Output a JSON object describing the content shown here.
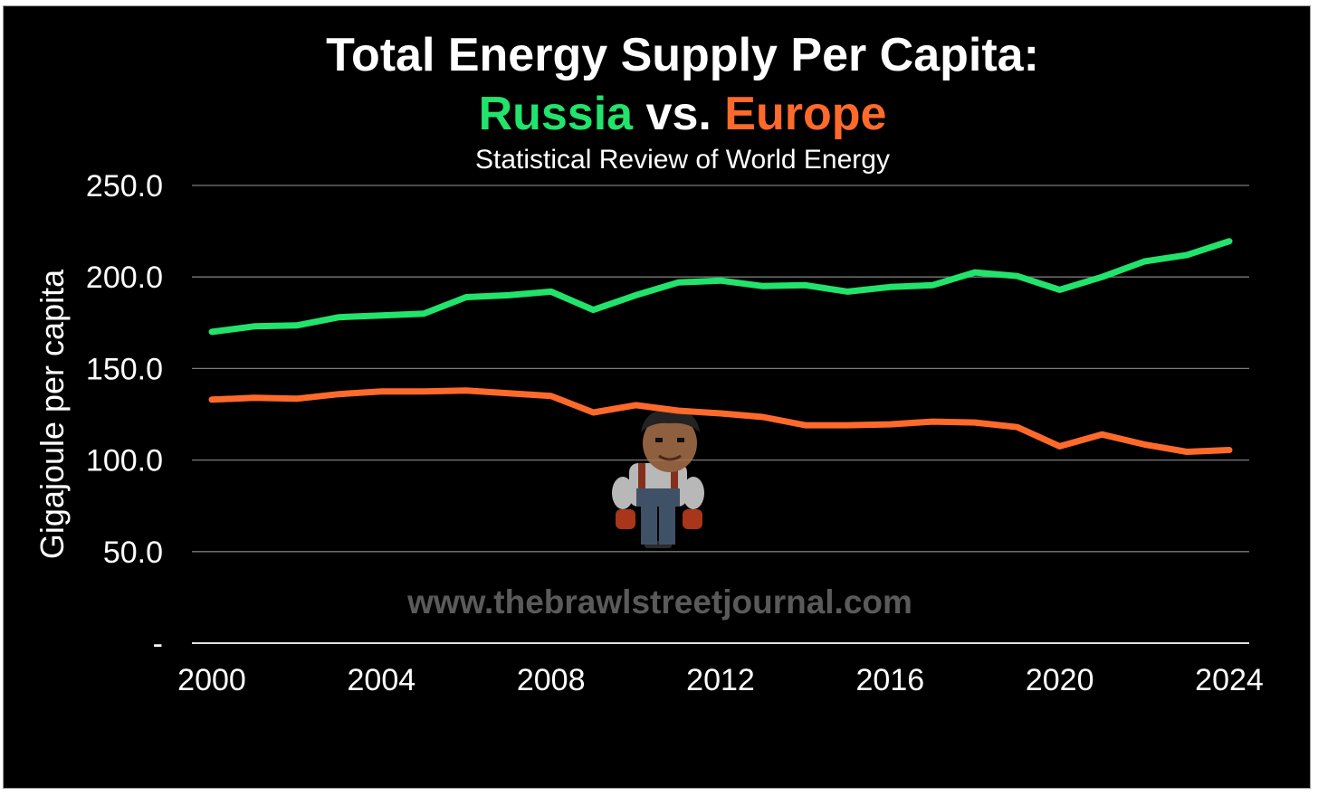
{
  "chart_data": {
    "type": "line",
    "title": "Total Energy Supply Per Capita:",
    "title_line2": {
      "a": "Russia",
      "vs": " vs. ",
      "b": "Europe"
    },
    "subtitle": "Statistical Review of World Energy",
    "ylabel": "Gigajoule per capita",
    "xlabel": "",
    "ylim": [
      0,
      250
    ],
    "y_ticks": [
      {
        "value": 0,
        "label": "-"
      },
      {
        "value": 50,
        "label": "50.0"
      },
      {
        "value": 100,
        "label": "100.0"
      },
      {
        "value": 150,
        "label": "150.0"
      },
      {
        "value": 200,
        "label": "200.0"
      },
      {
        "value": 250,
        "label": "250.0"
      }
    ],
    "x_ticks": [
      2000,
      2004,
      2008,
      2012,
      2016,
      2020,
      2024
    ],
    "grid": true,
    "x": [
      2000,
      2001,
      2002,
      2003,
      2004,
      2005,
      2006,
      2007,
      2008,
      2009,
      2010,
      2011,
      2012,
      2013,
      2014,
      2015,
      2016,
      2017,
      2018,
      2019,
      2020,
      2021,
      2022,
      2023,
      2024
    ],
    "series": [
      {
        "name": "Russia",
        "color": "#22e36b",
        "values": [
          170,
          173,
          173.5,
          178,
          179,
          180,
          189,
          190,
          192,
          182,
          190,
          197,
          198,
          195,
          195.5,
          192,
          194.5,
          195.5,
          202.5,
          200.5,
          193,
          200,
          208.5,
          212,
          219.5
        ]
      },
      {
        "name": "Europe",
        "color": "#ff6a2b",
        "values": [
          133,
          134,
          133.5,
          136,
          137.5,
          137.5,
          138,
          136.5,
          135,
          126,
          130,
          127,
          125.5,
          123.5,
          119,
          119,
          119.5,
          121,
          120.5,
          118,
          107.5,
          114,
          108.5,
          104.5,
          105.5
        ]
      }
    ],
    "watermark": "www.thebrawlstreetjournal.com"
  }
}
